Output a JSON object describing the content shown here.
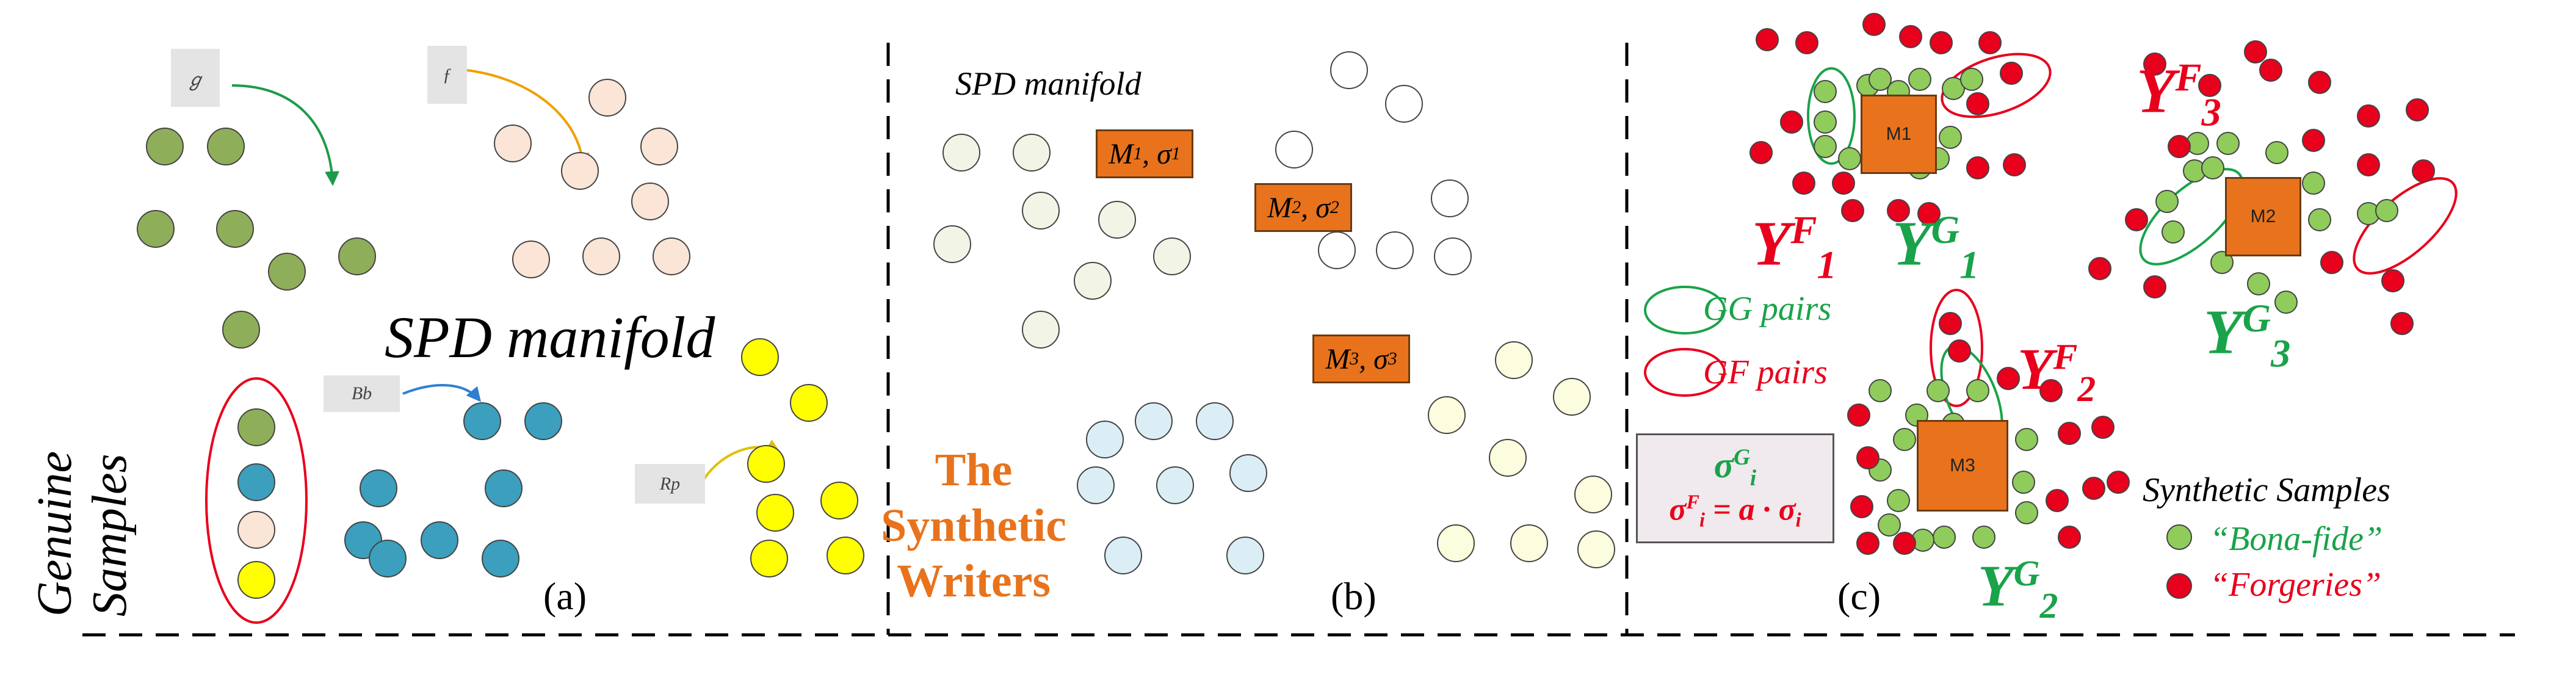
{
  "panel_a": {
    "caption": "(a)",
    "manifold_label": "SPD manifold",
    "side_label_line1": "Genuine",
    "side_label_line2": "Samples",
    "colors": {
      "green": "#8fae5a",
      "peach": "#fbe5d6",
      "blue": "#3b9fbd",
      "yellow": "#ffff00"
    }
  },
  "panel_b": {
    "caption": "(b)",
    "manifold_label": "SPD manifold",
    "boxes": [
      {
        "m": "M",
        "sub": "1",
        "s": "σ",
        "ssub": "1"
      },
      {
        "m": "M",
        "sub": "2",
        "s": "σ",
        "ssub": "2"
      },
      {
        "m": "M",
        "sub": "3",
        "s": "σ",
        "ssub": "3"
      }
    ],
    "synthetic_line1": "The",
    "synthetic_line2": "Synthetic",
    "synthetic_line3": "Writers",
    "synthetic_color": "#e8731c"
  },
  "panel_c": {
    "caption": "(c)",
    "m_boxes": [
      "M1",
      "M2",
      "M3"
    ],
    "labels_f": [
      {
        "base": "Y",
        "sup": "F",
        "sub": "1"
      },
      {
        "base": "Y",
        "sup": "F",
        "sub": "2"
      },
      {
        "base": "Y",
        "sup": "F",
        "sub": "3"
      }
    ],
    "labels_g": [
      {
        "base": "Y",
        "sup": "G",
        "sub": "1"
      },
      {
        "base": "Y",
        "sup": "G",
        "sub": "2"
      },
      {
        "base": "Y",
        "sup": "G",
        "sub": "3"
      }
    ],
    "legend_gg": "GG pairs",
    "legend_gf": "GF pairs",
    "sigma_g": {
      "base": "σ",
      "sup": "G",
      "sub": "i"
    },
    "sigma_f_lhs": {
      "base": "σ",
      "sup": "F",
      "sub": "i"
    },
    "sigma_f_rhs": "= a · σ",
    "sigma_f_rhs_sub": "i",
    "synthetic_title": "Synthetic Samples",
    "bona_fide": "“Bona-fide”",
    "forgeries": "“Forgeries”",
    "colors": {
      "red": "#e8001c",
      "green": "#1aa34a",
      "dot_green": "#8fcc5c"
    }
  }
}
